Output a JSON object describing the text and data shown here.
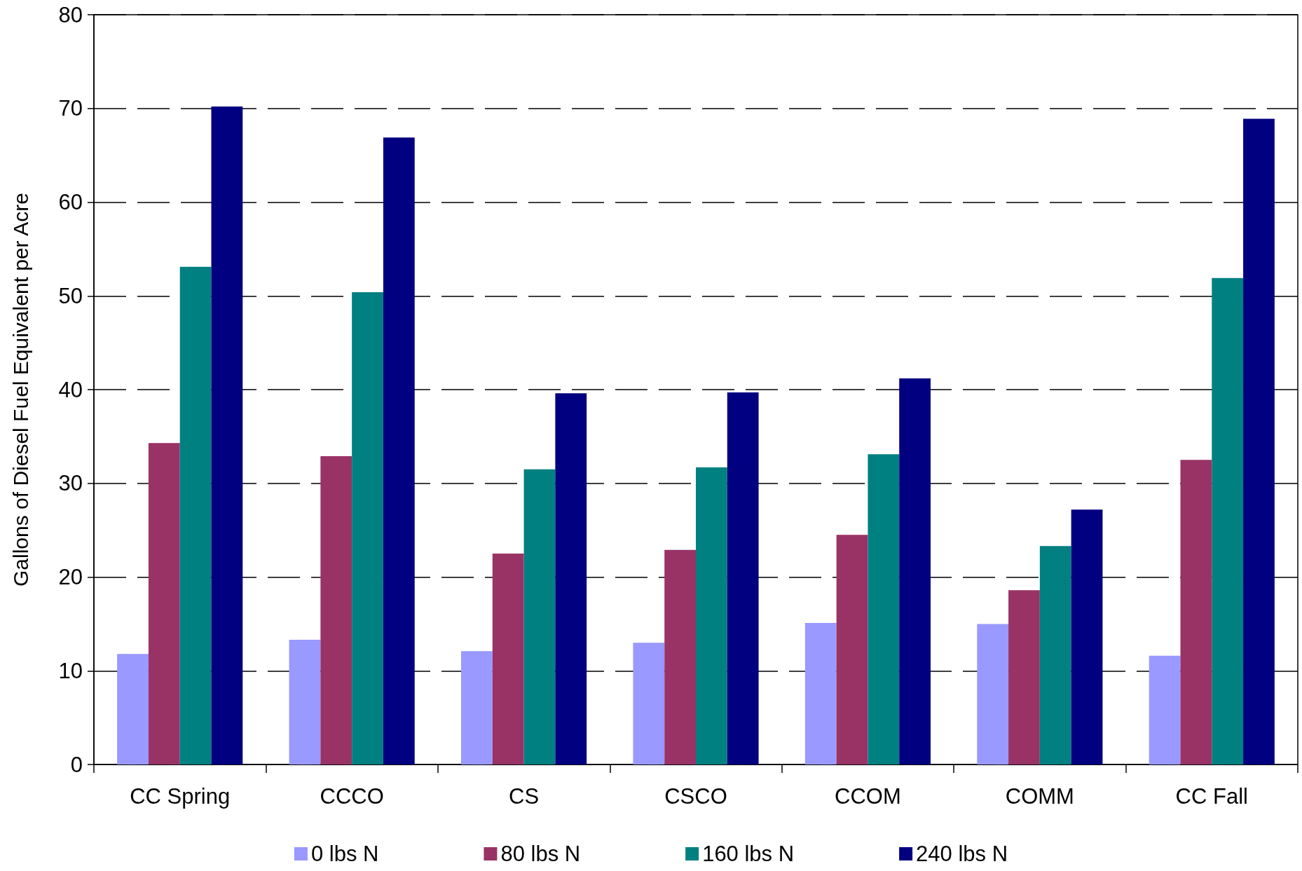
{
  "chart_data": {
    "type": "bar",
    "ylabel": "Gallons of Diesel Fuel Equivalent per Acre",
    "categories": [
      "CC Spring",
      "CCCO",
      "CS",
      "CSCO",
      "CCOM",
      "COMM",
      "CC Fall"
    ],
    "series": [
      {
        "name": "0 lbs N",
        "color": "#9999ff",
        "values": [
          11.8,
          13.3,
          12.1,
          13.0,
          15.1,
          15.0,
          11.6
        ]
      },
      {
        "name": "80 lbs N",
        "color": "#993366",
        "values": [
          34.3,
          32.9,
          22.5,
          22.9,
          24.5,
          18.6,
          32.5
        ]
      },
      {
        "name": "160 lbs N",
        "color": "#008080",
        "values": [
          53.1,
          50.4,
          31.5,
          31.7,
          33.1,
          23.3,
          51.9
        ]
      },
      {
        "name": "240 lbs N",
        "color": "#000080",
        "values": [
          70.2,
          66.9,
          39.6,
          39.7,
          41.2,
          27.2,
          68.9
        ]
      }
    ],
    "ylim": [
      0,
      80
    ],
    "yticks": [
      0,
      10,
      20,
      30,
      40,
      50,
      60,
      70,
      80
    ],
    "grid": "y",
    "legend": "bottom"
  }
}
